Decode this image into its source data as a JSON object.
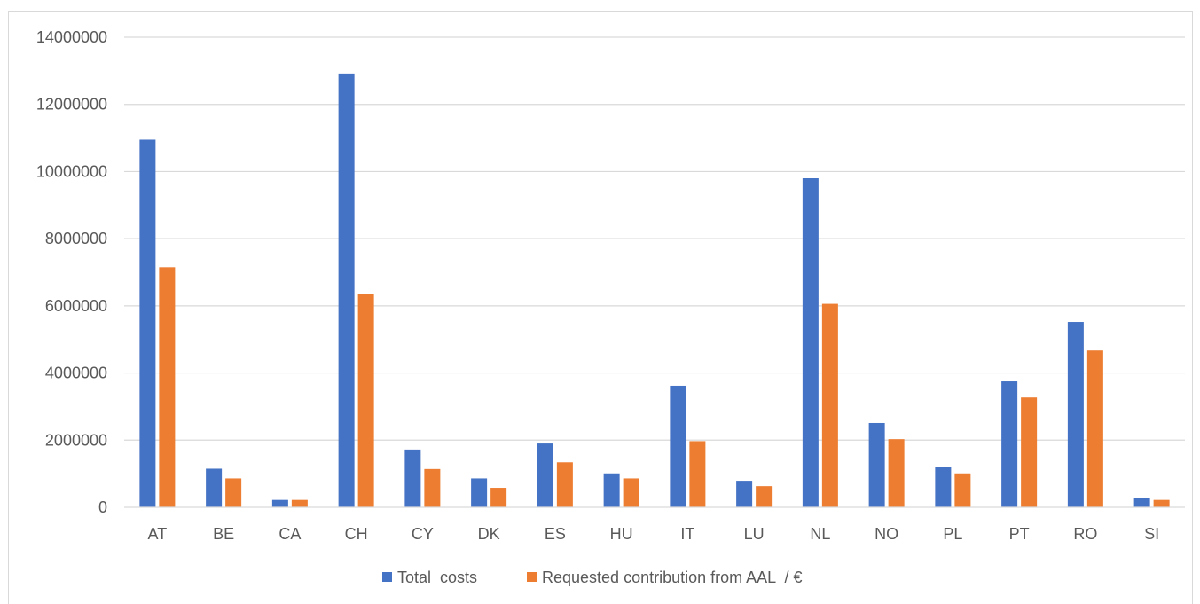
{
  "chart_data": {
    "type": "bar",
    "title": "",
    "xlabel": "",
    "ylabel": "",
    "categories": [
      "AT",
      "BE",
      "CA",
      "CH",
      "CY",
      "DK",
      "ES",
      "HU",
      "IT",
      "LU",
      "NL",
      "NO",
      "PL",
      "PT",
      "RO",
      "SI"
    ],
    "series": [
      {
        "name": "Total  costs",
        "color": "#4472c4",
        "values": [
          10950000,
          1150000,
          220000,
          12920000,
          1720000,
          860000,
          1900000,
          1010000,
          3620000,
          790000,
          9800000,
          2510000,
          1210000,
          3750000,
          5520000,
          290000
        ]
      },
      {
        "name": "Requested contribution from AAL  / €",
        "color": "#ed7d31",
        "values": [
          7150000,
          860000,
          220000,
          6350000,
          1140000,
          580000,
          1340000,
          860000,
          1970000,
          630000,
          6060000,
          2030000,
          1010000,
          3270000,
          4670000,
          220000
        ]
      }
    ],
    "ylim": [
      0,
      14000000
    ],
    "yticks": [
      "0",
      "2000000",
      "4000000",
      "6000000",
      "8000000",
      "10000000",
      "12000000",
      "14000000"
    ],
    "grid": true,
    "legend_position": "bottom"
  }
}
